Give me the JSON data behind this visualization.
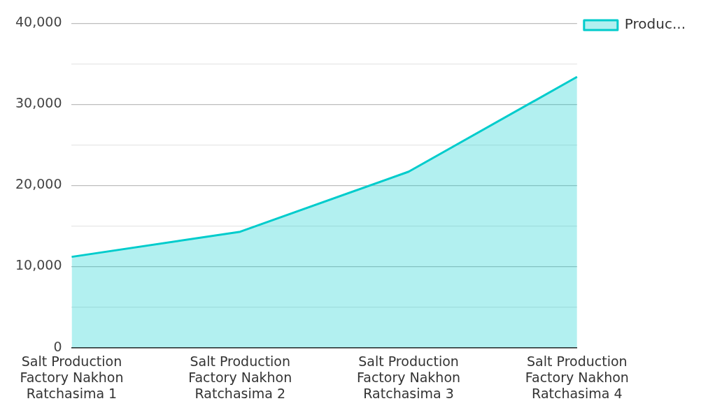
{
  "chart_data": {
    "type": "area",
    "categories": [
      "Salt Production Factory Nakhon Ratchasima 1",
      "Salt Production Factory Nakhon Ratchasima 2",
      "Salt Production Factory Nakhon Ratchasima 3",
      "Salt Production Factory Nakhon Ratchasima 4"
    ],
    "series": [
      {
        "name": "Produc...",
        "color": "#00cccc",
        "values": [
          11200,
          14300,
          21700,
          33400
        ]
      }
    ],
    "ylim": [
      0,
      40000
    ],
    "yticks": [
      0,
      {
        "value": 5000,
        "label": null
      },
      {
        "value": 10000,
        "label": "10,000"
      },
      {
        "value": 15000,
        "label": null
      },
      {
        "value": 20000,
        "label": "20,000"
      },
      {
        "value": 25000,
        "label": null
      },
      {
        "value": 30000,
        "label": "30,000"
      },
      {
        "value": 35000,
        "label": null
      },
      {
        "value": 40000,
        "label": "40,000"
      }
    ],
    "grid": "y",
    "legend": "top right"
  }
}
